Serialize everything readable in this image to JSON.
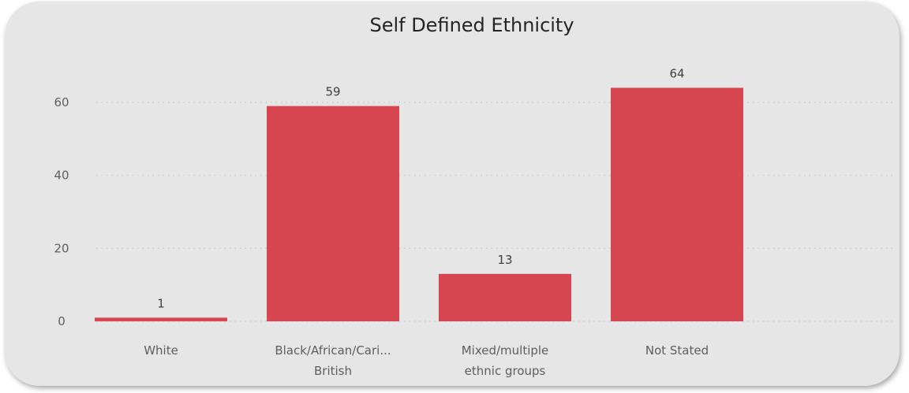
{
  "chart_data": {
    "type": "bar",
    "title": "Self Defined Ethnicity",
    "categories": [
      [
        "White"
      ],
      [
        "Black/African/Cari...",
        "British"
      ],
      [
        "Mixed/multiple",
        "ethnic groups"
      ],
      [
        "Not Stated"
      ]
    ],
    "values": [
      1,
      59,
      13,
      64
    ],
    "data_labels": [
      "1",
      "59",
      "13",
      "64"
    ],
    "y_ticks": [
      0,
      20,
      40,
      60
    ],
    "ylim": [
      0,
      64
    ],
    "grid": true,
    "grid_style": "dotted",
    "bar_color": "#d64550",
    "legend": "none"
  }
}
